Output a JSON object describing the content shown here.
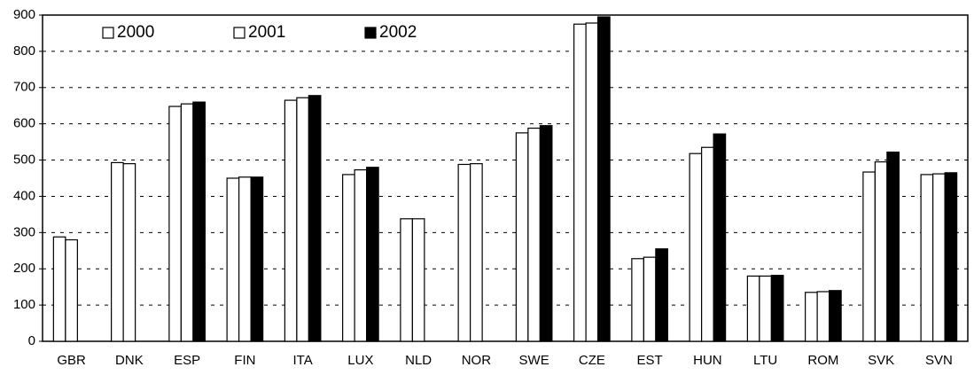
{
  "chart_data": {
    "type": "bar",
    "categories": [
      "GBR",
      "DNK",
      "ESP",
      "FIN",
      "ITA",
      "LUX",
      "NLD",
      "NOR",
      "SWE",
      "CZE",
      "EST",
      "HUN",
      "LTU",
      "ROM",
      "SVK",
      "SVN"
    ],
    "series": [
      {
        "name": "2000",
        "color": "#ffffff",
        "values": [
          288,
          493,
          648,
          450,
          665,
          460,
          338,
          488,
          575,
          875,
          228,
          518,
          180,
          135,
          467,
          460
        ]
      },
      {
        "name": "2001",
        "color": "#ffffff",
        "values": [
          280,
          490,
          655,
          453,
          672,
          473,
          338,
          490,
          588,
          878,
          232,
          535,
          180,
          137,
          495,
          462
        ]
      },
      {
        "name": "2002",
        "color": "#000000",
        "values": [
          null,
          null,
          660,
          453,
          678,
          480,
          null,
          null,
          595,
          895,
          255,
          572,
          182,
          140,
          522,
          465
        ]
      }
    ],
    "ylim": [
      0,
      900
    ],
    "yticks": [
      0,
      100,
      200,
      300,
      400,
      500,
      600,
      700,
      800,
      900
    ],
    "grid": true,
    "legend": "top-left"
  }
}
